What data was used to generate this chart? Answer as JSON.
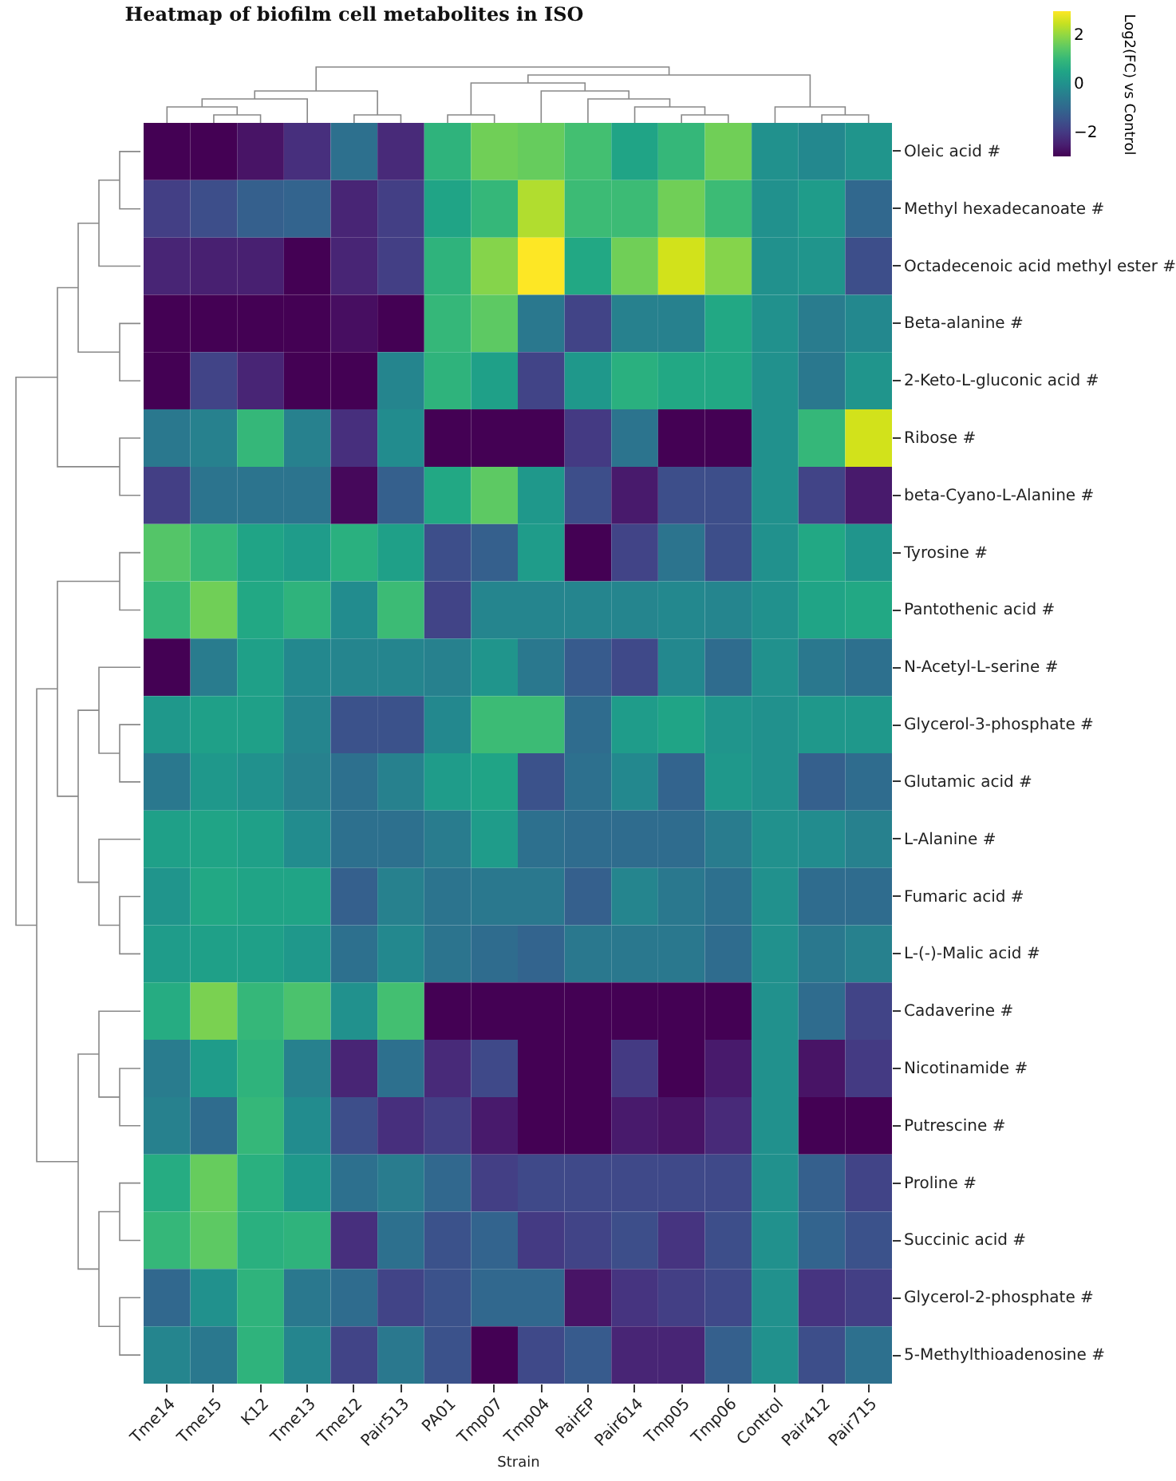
{
  "chart_data": {
    "type": "heatmap",
    "title": "Heatmap of biofilm cell metabolites in ISO",
    "xlabel": "Strain",
    "clabel": "Log2(FC) vs Control",
    "clim": [
      -3,
      3
    ],
    "cticks": [
      -2,
      0,
      2
    ],
    "categories": [
      "Tme14",
      "Tme15",
      "K12",
      "Tme13",
      "Tme12",
      "Pair513",
      "PA01",
      "Tmp07",
      "Tmp04",
      "PairEP",
      "Pair614",
      "Tmp05",
      "Tmp06",
      "Control",
      "Pair412",
      "Pair715"
    ],
    "y_categories": [
      "Oleic acid #",
      "Methyl hexadecanoate #",
      "Octadecenoic acid methyl ester #",
      "Beta-alanine #",
      "2-Keto-L-gluconic acid #",
      "Ribose #",
      "beta-Cyano-L-Alanine #",
      "Tyrosine #",
      "Pantothenic acid #",
      "N-Acetyl-L-serine #",
      "Glycerol-3-phosphate #",
      "Glutamic acid #",
      "L-Alanine #",
      "Fumaric acid #",
      "L-(-)-Malic acid #",
      "Cadaverine #",
      "Nicotinamide #",
      "Putrescine #",
      "Proline #",
      "Succinic acid #",
      "Glycerol-2-phosphate #",
      "5-Methylthioadenosine  #"
    ],
    "cells": [
      [
        -3,
        -3,
        -2.7,
        -2.2,
        -0.8,
        -2.3,
        0.9,
        1.7,
        1.6,
        1.2,
        0.5,
        1.0,
        1.7,
        0,
        -0.2,
        0.1
      ],
      [
        -1.9,
        -1.6,
        -1.2,
        -1.1,
        -2.4,
        -1.9,
        0.5,
        1.0,
        2.3,
        1.1,
        1.1,
        1.7,
        1.1,
        0,
        0.3,
        -1.0
      ],
      [
        -2.4,
        -2.5,
        -2.5,
        -3,
        -2.4,
        -1.9,
        0.9,
        1.9,
        3.0,
        0.6,
        1.7,
        2.6,
        1.9,
        0,
        0.1,
        -1.6
      ],
      [
        -3,
        -3,
        -3,
        -3,
        -2.8,
        -3,
        1.0,
        1.5,
        -0.6,
        -1.8,
        -0.4,
        -0.4,
        0.6,
        0,
        -0.5,
        -0.2
      ],
      [
        -3,
        -1.8,
        -2.4,
        -3,
        -3,
        -0.3,
        0.9,
        0.4,
        -1.8,
        0.2,
        0.8,
        0.6,
        0.6,
        0,
        -0.6,
        0.1
      ],
      [
        -0.6,
        -0.4,
        1.0,
        -0.4,
        -2.2,
        -0.1,
        -3,
        -3,
        -3,
        -2.0,
        -0.7,
        -3,
        -3,
        0,
        1.0,
        2.6
      ],
      [
        -1.9,
        -0.7,
        -0.7,
        -0.7,
        -2.9,
        -1.2,
        0.6,
        1.5,
        0.2,
        -1.6,
        -2.6,
        -1.6,
        -1.6,
        0,
        -1.8,
        -2.6
      ],
      [
        1.4,
        1.0,
        0.5,
        0.3,
        0.8,
        0.4,
        -1.6,
        -1.2,
        0.3,
        -3,
        -1.8,
        -0.7,
        -1.6,
        0,
        0.6,
        0.1
      ],
      [
        1.0,
        1.7,
        0.6,
        0.9,
        -0.1,
        1.1,
        -1.8,
        -0.3,
        -0.3,
        -0.3,
        -0.3,
        -0.2,
        -0.3,
        0,
        0.5,
        0.6
      ],
      [
        -3,
        -0.5,
        0.4,
        -0.2,
        -0.3,
        -0.3,
        -0.4,
        0.1,
        -0.6,
        -1.3,
        -1.7,
        -0.2,
        -0.9,
        0,
        -0.6,
        -0.8
      ],
      [
        0.2,
        0.4,
        0.4,
        -0.3,
        -1.5,
        -1.5,
        -0.2,
        1.1,
        1.1,
        -0.9,
        0.3,
        0.5,
        0.1,
        0,
        0.2,
        0.2
      ],
      [
        -0.6,
        0.2,
        0.0,
        -0.4,
        -0.8,
        -0.4,
        0.3,
        0.5,
        -1.5,
        -0.8,
        -0.2,
        -1.1,
        0.2,
        0,
        -1.2,
        -0.9
      ],
      [
        0.4,
        0.5,
        0.4,
        -0.1,
        -0.8,
        -0.8,
        -0.5,
        0.3,
        -0.8,
        -0.9,
        -0.9,
        -0.9,
        -0.5,
        0,
        -0.1,
        -0.4
      ],
      [
        0.1,
        0.6,
        0.5,
        0.5,
        -1.2,
        -0.4,
        -0.7,
        -0.6,
        -0.6,
        -1.2,
        -0.3,
        -0.6,
        -0.8,
        0,
        -0.9,
        -0.9
      ],
      [
        0.3,
        0.4,
        0.4,
        0.2,
        -0.8,
        -0.2,
        -0.7,
        -0.9,
        -1.1,
        -0.6,
        -0.6,
        -0.6,
        -0.9,
        0,
        -0.6,
        -0.4
      ],
      [
        0.7,
        1.8,
        1.0,
        1.3,
        0.0,
        1.2,
        -3,
        -3,
        -3,
        -3,
        -3,
        -3,
        -3,
        0,
        -0.9,
        -1.8
      ],
      [
        -0.5,
        0.3,
        0.9,
        -0.4,
        -2.4,
        -0.8,
        -2.3,
        -1.7,
        -3,
        -3,
        -2.0,
        -3,
        -2.6,
        0,
        -2.7,
        -2.0
      ],
      [
        -0.4,
        -0.9,
        1.0,
        -0.1,
        -1.6,
        -2.2,
        -1.9,
        -2.6,
        -3,
        -3,
        -2.6,
        -2.7,
        -2.3,
        0,
        -3,
        -3
      ],
      [
        0.7,
        1.6,
        0.8,
        0.2,
        -0.8,
        -0.5,
        -1.0,
        -1.9,
        -1.7,
        -1.7,
        -1.7,
        -1.7,
        -1.7,
        0,
        -1.2,
        -1.8
      ],
      [
        1.0,
        1.5,
        0.8,
        0.9,
        -2.2,
        -0.8,
        -1.5,
        -1.1,
        -2.0,
        -1.8,
        -1.6,
        -2.1,
        -1.6,
        0,
        -1.1,
        -1.5
      ],
      [
        -1.0,
        0.0,
        0.9,
        -0.6,
        -0.9,
        -1.8,
        -1.5,
        -1.0,
        -1.0,
        -2.7,
        -2.1,
        -1.9,
        -1.7,
        0,
        -2.1,
        -1.9
      ],
      [
        -0.3,
        -0.6,
        0.9,
        -0.3,
        -1.8,
        -0.6,
        -1.5,
        -3,
        -1.7,
        -1.3,
        -2.4,
        -2.4,
        -1.2,
        0,
        -1.6,
        -0.8
      ]
    ]
  }
}
